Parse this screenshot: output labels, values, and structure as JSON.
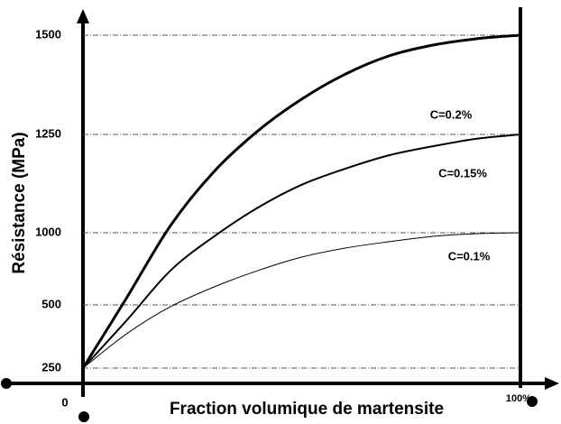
{
  "chart_data": {
    "type": "line",
    "ylabel": "Résistance (MPa)",
    "xlabel": "Fraction volumique de martensite",
    "x": [
      0,
      10,
      20,
      30,
      40,
      50,
      60,
      70,
      80,
      90,
      100
    ],
    "xlim": [
      0,
      100
    ],
    "xticks": [
      0,
      {
        "value": 100,
        "label": "100%"
      }
    ],
    "ylim": [
      250,
      1500
    ],
    "yticks": [
      250,
      500,
      1000,
      1250,
      1500
    ],
    "grid": true,
    "series": [
      {
        "name": "C=0.2%",
        "color": "#000000",
        "values": [
          250,
          550,
          1018,
          1156,
          1259,
          1339,
          1402,
          1448,
          1475,
          1491,
          1500
        ]
      },
      {
        "name": "C=0.15%",
        "color": "#000000",
        "values": [
          250,
          439,
          738,
          975,
          1064,
          1122,
          1163,
          1197,
          1220,
          1239,
          1250
        ]
      },
      {
        "name": "C=0.1%",
        "color": "#000000",
        "values": [
          250,
          386,
          493,
          625,
          738,
          831,
          894,
          938,
          975,
          994,
          1000
        ]
      }
    ]
  }
}
